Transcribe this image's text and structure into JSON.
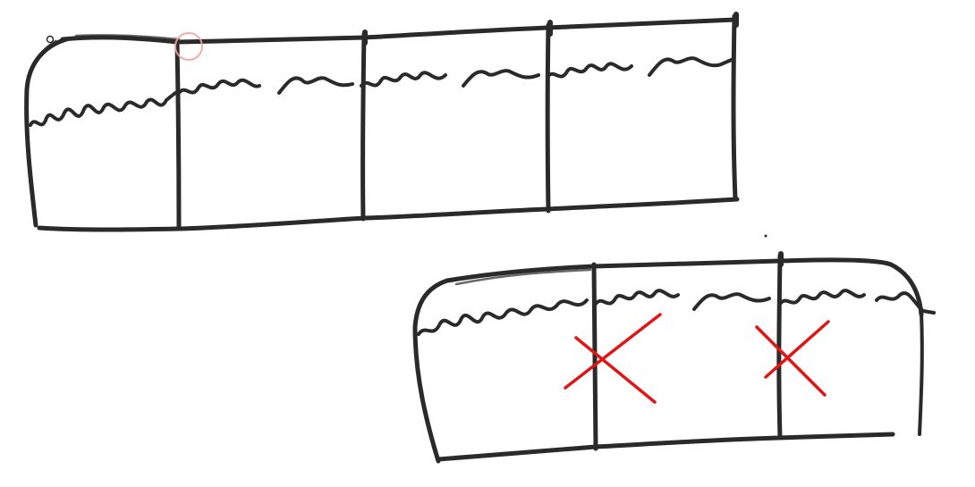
{
  "sketch": {
    "ink_color": "#2a2a2a",
    "mark_color": "#e01515",
    "cursor_ring_color": "#f2a3a0",
    "top_strip": {
      "cells": 4,
      "cell_kinds": [
        "rounded-end",
        "square",
        "square",
        "square-open-right"
      ]
    },
    "bottom_strip": {
      "cells": 3,
      "crossed_out_cells": [
        2,
        3
      ]
    }
  }
}
